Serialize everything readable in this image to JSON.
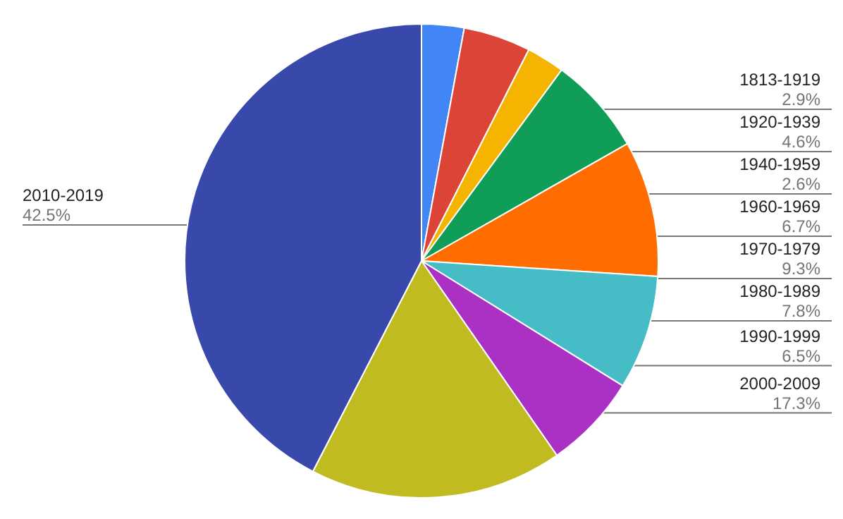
{
  "chart_data": {
    "type": "pie",
    "categories": [
      "1813-1919",
      "1920-1939",
      "1940-1959",
      "1960-1969",
      "1970-1979",
      "1980-1989",
      "1990-1999",
      "2000-2009",
      "2010-2019"
    ],
    "values": [
      2.9,
      4.6,
      2.6,
      6.7,
      9.3,
      7.8,
      6.5,
      17.3,
      42.5
    ],
    "value_labels": [
      "2.9%",
      "4.6%",
      "2.6%",
      "6.7%",
      "9.3%",
      "7.8%",
      "6.5%",
      "17.3%",
      "42.5%"
    ],
    "colors": [
      "#4285f4",
      "#db4437",
      "#f4b400",
      "#0f9d58",
      "#ff6d01",
      "#46bdc6",
      "#ab30c4",
      "#c0bb20",
      "#3949ab"
    ],
    "legend": false
  }
}
